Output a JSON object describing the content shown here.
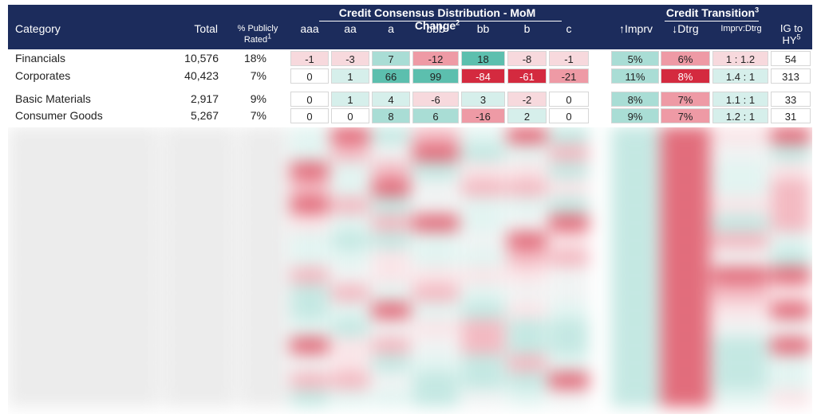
{
  "header": {
    "category": "Category",
    "total": "Total",
    "publicly_rated": "% Publicly Rated",
    "publicly_rated_sup": "1",
    "group1": "Credit Consensus Distribution - MoM Change",
    "group1_sup": "2",
    "group2": "Credit Transition",
    "group2_sup": "3",
    "cols": [
      "aaa",
      "aa",
      "a",
      "bbb",
      "bb",
      "b",
      "c"
    ],
    "imprv": "↑Imprv",
    "dtrg": "↓Dtrg",
    "ratio": "Imprv:Dtrg",
    "ig_to_hy": "IG to HY",
    "ig_to_hy_sup": "5"
  },
  "rows": [
    {
      "category": "Financials",
      "total": "10,576",
      "pct": "18%",
      "dist": [
        "-1",
        "-3",
        "7",
        "-12",
        "18",
        "-8",
        "-1"
      ],
      "imprv": "5%",
      "dtrg": "6%",
      "ratio": "1 : 1.2",
      "ig_hy": "54"
    },
    {
      "category": "Corporates",
      "total": "40,423",
      "pct": "7%",
      "dist": [
        "0",
        "1",
        "66",
        "99",
        "-84",
        "-61",
        "-21"
      ],
      "imprv": "11%",
      "dtrg": "8%",
      "ratio": "1.4 : 1",
      "ig_hy": "313"
    },
    {
      "category": "Basic Materials",
      "total": "2,917",
      "pct": "9%",
      "dist": [
        "0",
        "1",
        "4",
        "-6",
        "3",
        "-2",
        "0"
      ],
      "imprv": "8%",
      "dtrg": "7%",
      "ratio": "1.1 : 1",
      "ig_hy": "33"
    },
    {
      "category": "Consumer Goods",
      "total": "5,267",
      "pct": "7%",
      "dist": [
        "0",
        "0",
        "8",
        "6",
        "-16",
        "2",
        "0"
      ],
      "imprv": "9%",
      "dtrg": "7%",
      "ratio": "1.2 : 1",
      "ig_hy": "31"
    }
  ],
  "colors": {
    "header_bg": "#1c2c5c",
    "teal_light": "#d6efeb",
    "teal_mid": "#a9ddd5",
    "teal_strong": "#5cbfae",
    "red_light": "#f7d9dd",
    "red_mid": "#ee9aa5",
    "red_strong": "#d42a3f",
    "neutral": "#ffffff"
  }
}
